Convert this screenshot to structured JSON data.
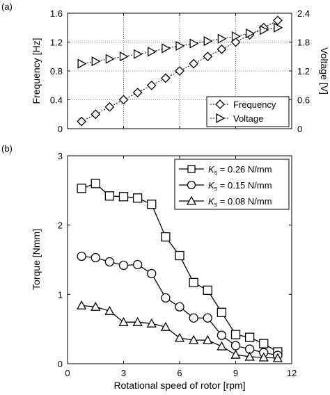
{
  "chart_data": [
    {
      "panel_label": "(a)",
      "type": "line",
      "xlim": [
        0,
        12
      ],
      "x_ticks": [
        "0",
        "3",
        "6",
        "9",
        "12"
      ],
      "ylabel_left": "Frequency [Hz]",
      "ylim_left": [
        0,
        1.6
      ],
      "y_ticks_left": [
        "0",
        "0.4",
        "0.8",
        "1.2",
        "1.6"
      ],
      "ylabel_right": "Voltage [V]",
      "ylim_right": [
        0,
        2.4
      ],
      "y_ticks_right": [
        "0",
        "0.6",
        "1.2",
        "1.8",
        "2.4"
      ],
      "grid": true,
      "legend_position": "bottom-right",
      "series": [
        {
          "name": "Frequency",
          "axis": "left",
          "marker": "diamond",
          "line": "dashed",
          "x": [
            0.75,
            1.5,
            2.25,
            3.0,
            3.75,
            4.5,
            5.25,
            6.0,
            6.75,
            7.5,
            8.25,
            9.0,
            9.75,
            10.5,
            11.25
          ],
          "values": [
            0.1,
            0.2,
            0.3,
            0.4,
            0.5,
            0.6,
            0.7,
            0.8,
            0.9,
            1.0,
            1.1,
            1.2,
            1.3,
            1.4,
            1.5
          ]
        },
        {
          "name": "Voltage",
          "axis": "right",
          "marker": "triangle-right",
          "line": "dashed",
          "x": [
            0.75,
            1.5,
            2.25,
            3.0,
            3.75,
            4.5,
            5.25,
            6.0,
            6.75,
            7.5,
            8.25,
            9.0,
            9.75,
            10.5,
            11.25
          ],
          "values": [
            1.35,
            1.4,
            1.45,
            1.5,
            1.55,
            1.6,
            1.67,
            1.72,
            1.77,
            1.82,
            1.87,
            1.92,
            1.98,
            2.05,
            2.1
          ]
        }
      ]
    },
    {
      "panel_label": "(b)",
      "type": "line",
      "xlabel": "Rotational speed of rotor [rpm]",
      "xlim": [
        0,
        12
      ],
      "x_ticks": [
        "0",
        "3",
        "6",
        "9",
        "12"
      ],
      "ylabel": "Torque [Nmm]",
      "ylim": [
        0,
        3
      ],
      "y_ticks": [
        "0",
        "1",
        "2",
        "3"
      ],
      "grid": false,
      "legend_position": "top-right",
      "series": [
        {
          "name_symbol": "K",
          "name_subscript": "s",
          "name_rest": " = 0.26 N/mm",
          "marker": "square",
          "x": [
            0.75,
            1.5,
            2.25,
            3.0,
            3.75,
            4.5,
            5.25,
            6.0,
            6.75,
            7.5,
            8.25,
            9.0,
            9.75,
            10.5,
            11.25
          ],
          "values": [
            2.53,
            2.6,
            2.42,
            2.41,
            2.39,
            2.3,
            1.83,
            1.56,
            1.17,
            1.06,
            0.74,
            0.42,
            0.38,
            0.29,
            0.17
          ]
        },
        {
          "name_symbol": "K",
          "name_subscript": "s",
          "name_rest": " = 0.15 N/mm",
          "marker": "circle",
          "x": [
            0.75,
            1.5,
            2.25,
            3.0,
            3.75,
            4.5,
            5.25,
            6.0,
            6.75,
            7.5,
            8.25,
            9.0,
            9.75,
            10.5,
            11.25
          ],
          "values": [
            1.55,
            1.53,
            1.47,
            1.42,
            1.43,
            1.3,
            0.95,
            0.82,
            0.66,
            0.66,
            0.41,
            0.26,
            0.21,
            0.16,
            0.12
          ]
        },
        {
          "name_symbol": "K",
          "name_subscript": "s",
          "name_rest": " = 0.08 N/mm",
          "marker": "triangle-up",
          "x": [
            0.75,
            1.5,
            2.25,
            3.0,
            3.75,
            4.5,
            5.25,
            6.0,
            6.75,
            7.5,
            8.25,
            9.0,
            9.75,
            10.5,
            11.25
          ],
          "values": [
            0.84,
            0.82,
            0.76,
            0.6,
            0.6,
            0.58,
            0.53,
            0.37,
            0.34,
            0.34,
            0.25,
            0.13,
            0.1,
            0.09,
            0.08
          ]
        }
      ]
    }
  ]
}
